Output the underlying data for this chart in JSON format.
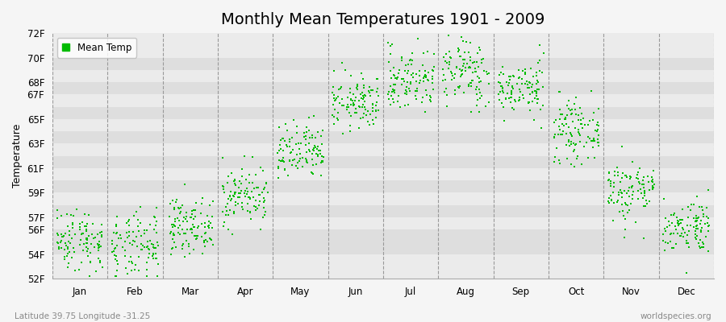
{
  "title": "Monthly Mean Temperatures 1901 - 2009",
  "ylabel": "Temperature",
  "xlabel_bottom_left": "Latitude 39.75 Longitude -31.25",
  "xlabel_bottom_right": "worldspecies.org",
  "legend_label": "Mean Temp",
  "dot_color": "#00bb00",
  "background_color": "#f5f5f5",
  "plot_bg_light": "#ebebeb",
  "plot_bg_dark": "#dedede",
  "title_fontsize": 14,
  "label_fontsize": 9,
  "tick_fontsize": 8.5,
  "yticks_all": [
    52,
    54,
    56,
    57,
    58,
    59,
    60,
    61,
    62,
    63,
    64,
    65,
    66,
    67,
    68,
    69,
    70,
    72
  ],
  "ytick_labels_show": [
    "52F",
    "54F",
    "56F",
    "57F",
    "",
    "59F",
    "",
    "61F",
    "",
    "63F",
    "",
    "65F",
    "",
    "67F",
    "68F",
    "",
    "70F",
    "72F"
  ],
  "ylim": [
    52,
    72
  ],
  "months": [
    "Jan",
    "Feb",
    "Mar",
    "Apr",
    "May",
    "Jun",
    "Jul",
    "Aug",
    "Sep",
    "Oct",
    "Nov",
    "Dec"
  ],
  "mean_temps_F": [
    55.2,
    54.5,
    56.3,
    58.8,
    62.2,
    66.3,
    68.2,
    68.8,
    67.5,
    64.0,
    59.2,
    56.3
  ],
  "std_temps_F": [
    1.3,
    1.4,
    1.1,
    1.2,
    1.2,
    1.1,
    1.3,
    1.4,
    1.1,
    1.2,
    1.3,
    1.1
  ],
  "n_years": 109,
  "seed": 42
}
